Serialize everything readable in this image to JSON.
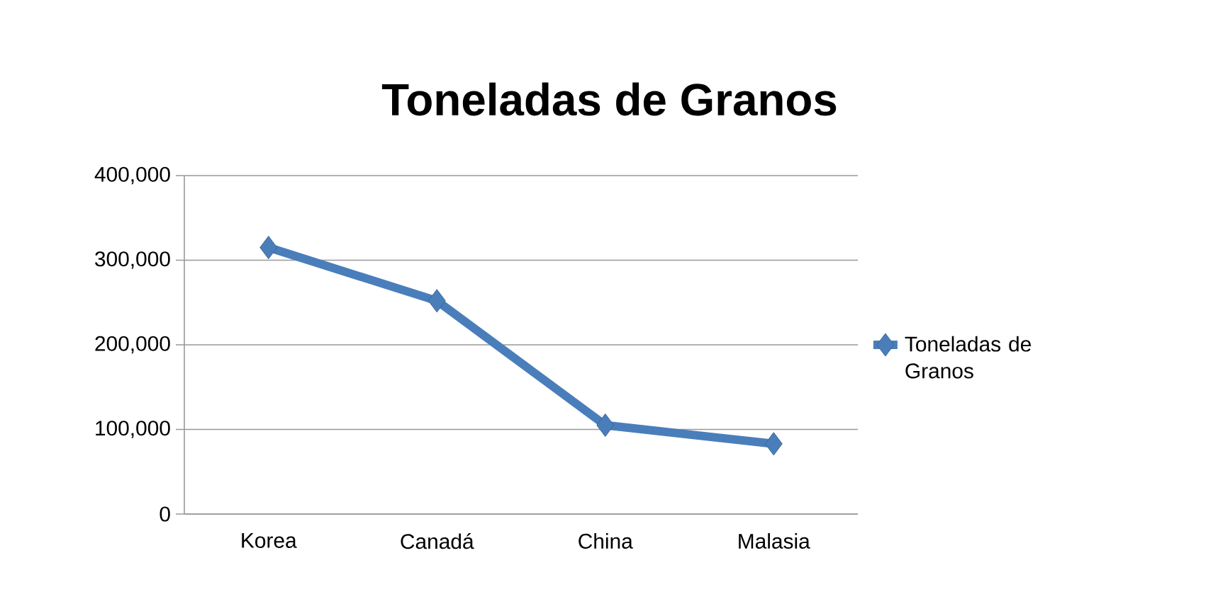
{
  "chart_data": {
    "type": "line",
    "title": "Toneladas de Granos",
    "categories": [
      "Korea",
      "Canadá",
      "China",
      "Malasia"
    ],
    "series": [
      {
        "name": "Toneladas de Granos",
        "color": "#4a7ebb",
        "values": [
          315000,
          252000,
          105000,
          83000
        ]
      }
    ],
    "ylim": [
      0,
      400000
    ],
    "yticks": [
      0,
      {
        "value": 100000,
        "label": "100,000"
      },
      {
        "value": 200000,
        "label": "200,000"
      },
      {
        "value": 300000,
        "label": "300,000"
      },
      {
        "value": 400000,
        "label": "400,000"
      }
    ],
    "grid": "y",
    "legend": "right",
    "marker": "diamond",
    "line_style": "solid"
  }
}
